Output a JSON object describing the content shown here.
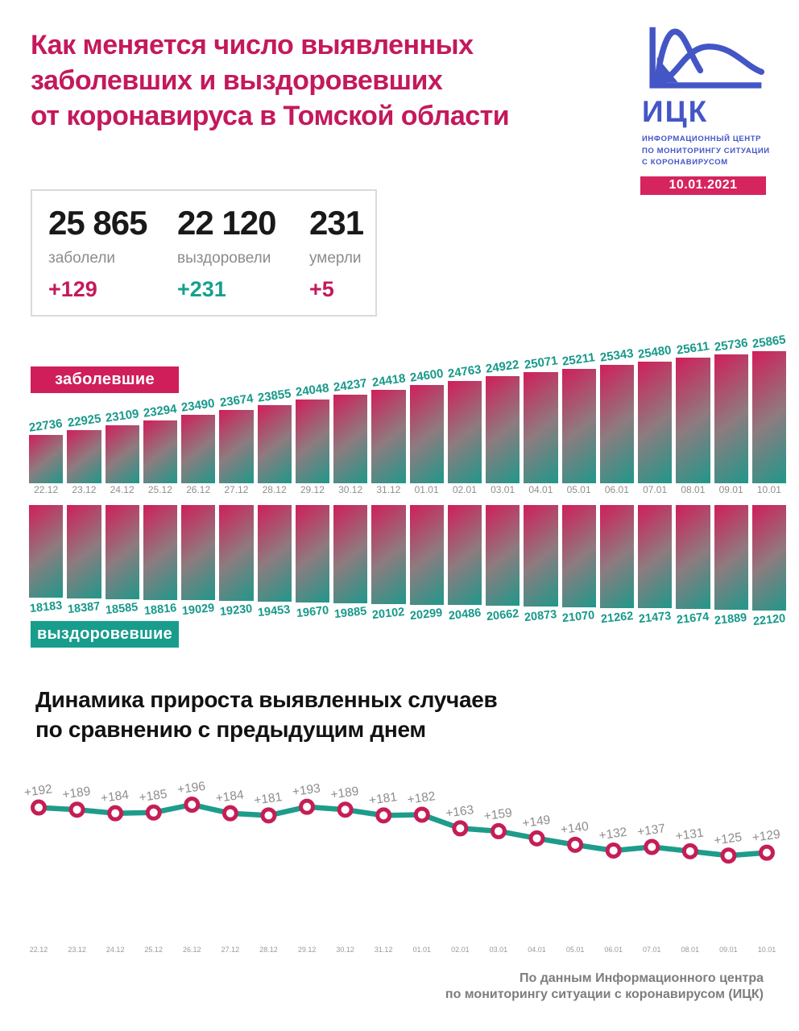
{
  "header": {
    "title_lines": [
      "Как меняется число выявленных",
      "заболевших и выздоровевших",
      "от коронавируса в Томской области"
    ],
    "logo": {
      "acronym": "ИЦК",
      "subtitle_lines": [
        "ИНФОРМАЦИОННЫЙ ЦЕНТР",
        "ПО МОНИТОРИНГУ СИТУАЦИИ",
        "С КОРОНАВИРУСОМ"
      ],
      "date_badge": "10.01.2021"
    }
  },
  "stats": {
    "items": [
      {
        "value": "25 865",
        "label": "заболели",
        "delta": "+129",
        "delta_color": "#c4195c"
      },
      {
        "value": "22 120",
        "label": "выздоровели",
        "delta": "+231",
        "delta_color": "#17a08d"
      },
      {
        "value": "231",
        "label": "умерли",
        "delta": "+5",
        "delta_color": "#c4195c"
      }
    ]
  },
  "chart_data": [
    {
      "type": "bar",
      "title": "заболевшие",
      "categories": [
        "22.12",
        "23.12",
        "24.12",
        "25.12",
        "26.12",
        "27.12",
        "28.12",
        "29.12",
        "30.12",
        "31.12",
        "01.01",
        "02.01",
        "03.01",
        "04.01",
        "05.01",
        "06.01",
        "07.01",
        "08.01",
        "09.01",
        "10.01"
      ],
      "values": [
        22736,
        22925,
        23109,
        23294,
        23490,
        23674,
        23855,
        24048,
        24237,
        24418,
        24600,
        24763,
        24922,
        25071,
        25211,
        25343,
        25480,
        25611,
        25736,
        25865
      ],
      "ylim": [
        22736,
        25865
      ],
      "legend_position": "top-left",
      "grid": false
    },
    {
      "type": "bar",
      "title": "выздоровевшие",
      "categories": [
        "22.12",
        "23.12",
        "24.12",
        "25.12",
        "26.12",
        "27.12",
        "28.12",
        "29.12",
        "30.12",
        "31.12",
        "01.01",
        "02.01",
        "03.01",
        "04.01",
        "05.01",
        "06.01",
        "07.01",
        "08.01",
        "09.01",
        "10.01"
      ],
      "values": [
        18183,
        18387,
        18585,
        18816,
        19029,
        19230,
        19453,
        19670,
        19885,
        20102,
        20299,
        20486,
        20662,
        20873,
        21070,
        21262,
        21473,
        21674,
        21889,
        22120
      ],
      "ylim": [
        18183,
        22120
      ],
      "legend_position": "bottom-left",
      "grid": false,
      "orientation": "hanging"
    },
    {
      "type": "line",
      "title": "Динамика прироста выявленных случаев по сравнению с предыдущим днем",
      "x": [
        "22.12",
        "23.12",
        "24.12",
        "25.12",
        "26.12",
        "27.12",
        "28.12",
        "29.12",
        "30.12",
        "31.12",
        "01.01",
        "02.01",
        "03.01",
        "04.01",
        "05.01",
        "06.01",
        "07.01",
        "08.01",
        "09.01",
        "10.01"
      ],
      "values": [
        192,
        189,
        184,
        185,
        196,
        184,
        181,
        193,
        189,
        181,
        182,
        163,
        159,
        149,
        140,
        132,
        137,
        131,
        125,
        129
      ],
      "label_prefix": "+",
      "ylim": [
        125,
        196
      ],
      "grid": false,
      "legend_position": "none"
    }
  ],
  "section2": {
    "title_lines": [
      "Динамика прироста выявленных случаев",
      "по сравнению с предыдущим днем"
    ]
  },
  "footer": {
    "lines": [
      "По данным Информационного центра",
      "по мониторингу ситуации с коронавирусом (ИЦК)"
    ]
  },
  "colors": {
    "title_crimson": "#c4195c",
    "bar_gradient_start": "#d01e5a",
    "bar_gradient_mid": "#8e7b7f",
    "bar_gradient_end": "#1f988a",
    "teal_text": "#17998a",
    "crimson_box": "#d01e5a",
    "teal_box": "#189d8d",
    "line_teal": "#1e9c8b",
    "marker_crimson": "#c51e56",
    "logo_blue": "#4456c6",
    "gray_label": "#8c8c8c",
    "footer_gray": "#7d7d7d"
  }
}
